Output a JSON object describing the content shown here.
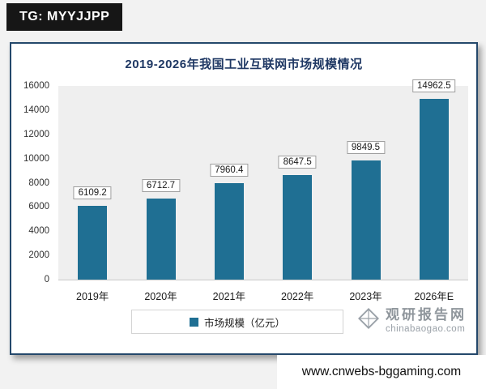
{
  "badge": {
    "label": "TG: MYYJJPP"
  },
  "chart_data": {
    "type": "bar",
    "title": "2019-2026年我国工业互联网市场规模情况",
    "categories": [
      "2019年",
      "2020年",
      "2021年",
      "2022年",
      "2023年",
      "2026年E"
    ],
    "values": [
      6109.2,
      6712.7,
      7960.4,
      8647.5,
      9849.5,
      14962.5
    ],
    "legend": "市场规模（亿元）",
    "xlabel": "",
    "ylabel": "",
    "ylim": [
      0,
      16000
    ],
    "yticks": [
      0,
      2000,
      4000,
      6000,
      8000,
      10000,
      12000,
      14000,
      16000
    ],
    "grid": false,
    "legend_position": "bottom",
    "bar_color": "#1F6F93",
    "title_color": "#1F3864"
  },
  "watermark": {
    "brand": "观研报告网",
    "site": "chinabaogao.com"
  },
  "footer": {
    "url": "www.cnwebs-bggaming.com"
  }
}
